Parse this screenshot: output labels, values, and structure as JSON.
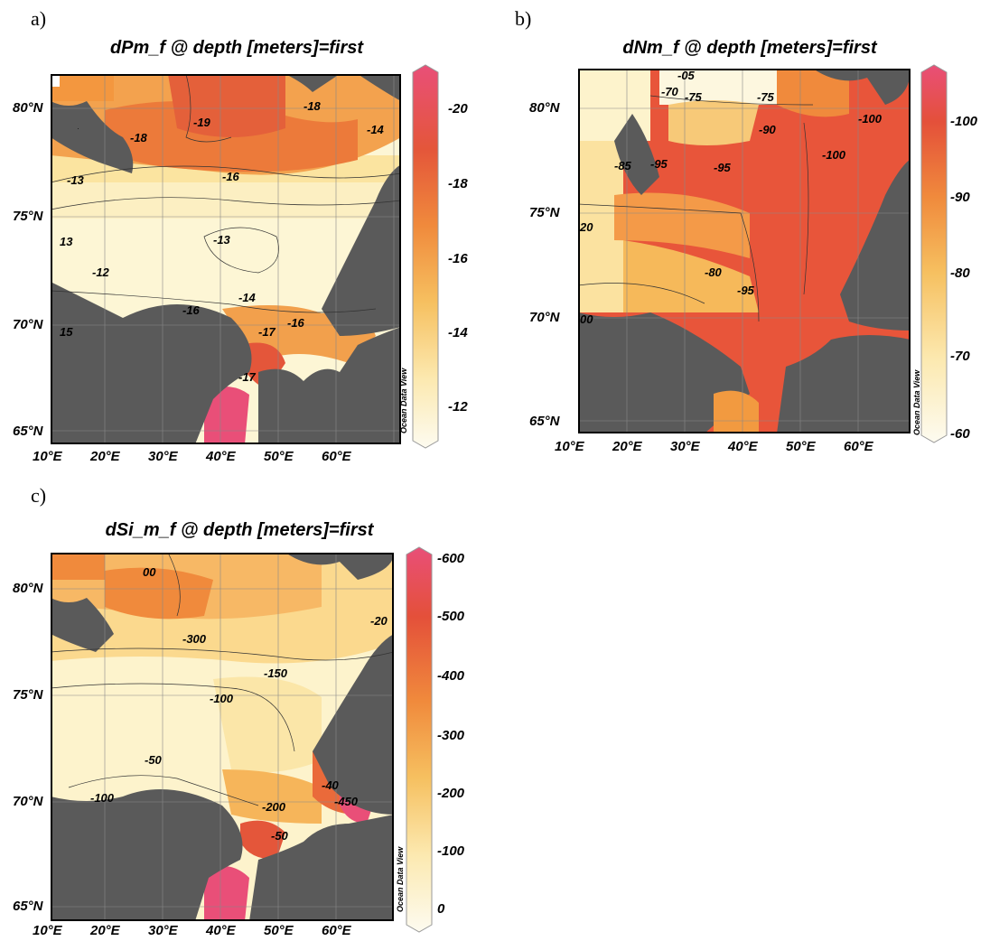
{
  "panels": [
    {
      "id": "a",
      "letter": "a)",
      "title": "dPm_f @ depth [meters]=first",
      "lat_labels": [
        "80°N",
        "75°N",
        "70°N",
        "65°N"
      ],
      "lon_labels": [
        "10°E",
        "20°E",
        "30°E",
        "40°E",
        "50°E",
        "60°E"
      ],
      "colorbar_ticks": [
        "-20",
        "-18",
        "-16",
        "-14",
        "-12"
      ],
      "contour_labels": [
        "-19",
        "-18",
        "-18",
        "-17",
        "-17",
        "-16",
        "-16",
        "-16",
        "-14",
        "-14",
        "-14",
        "-13",
        "-13",
        "-13",
        "-12",
        "-1",
        "-1",
        "-1",
        "-19",
        "-17",
        "15",
        "13"
      ],
      "watermark": "Ocean Data View"
    },
    {
      "id": "b",
      "letter": "b)",
      "title": "dNm_f @ depth [meters]=first",
      "lat_labels": [
        "80°N",
        "75°N",
        "70°N",
        "65°N"
      ],
      "lon_labels": [
        "10°E",
        "20°E",
        "30°E",
        "40°E",
        "50°E",
        "60°E"
      ],
      "colorbar_ticks": [
        "-100",
        "-90",
        "-80",
        "-70",
        "-60"
      ],
      "contour_labels": [
        "-100",
        "-100",
        "-95",
        "-95",
        "-95",
        "-95",
        "-90",
        "-90",
        "-90",
        "-85",
        "-80",
        "-75",
        "-75",
        "-70",
        "-95",
        "-9",
        "-9",
        "80",
        "-05",
        "20",
        "00"
      ],
      "watermark": "Ocean Data View"
    },
    {
      "id": "c",
      "letter": "c)",
      "title": "dSi_m_f @ depth [meters]=first",
      "lat_labels": [
        "80°N",
        "75°N",
        "70°N",
        "65°N"
      ],
      "lon_labels": [
        "10°E",
        "20°E",
        "30°E",
        "40°E",
        "50°E",
        "60°E"
      ],
      "colorbar_ticks": [
        "-600",
        "-500",
        "-400",
        "-300",
        "-200",
        "-100",
        "0"
      ],
      "contour_labels": [
        "-300",
        "-200",
        "-150",
        "-100",
        "-100",
        "-50",
        "-450",
        "-50",
        "-20",
        "-40",
        "-2",
        "-2",
        "00",
        "0",
        "-5",
        "0"
      ],
      "watermark": "Ocean Data View"
    }
  ]
}
